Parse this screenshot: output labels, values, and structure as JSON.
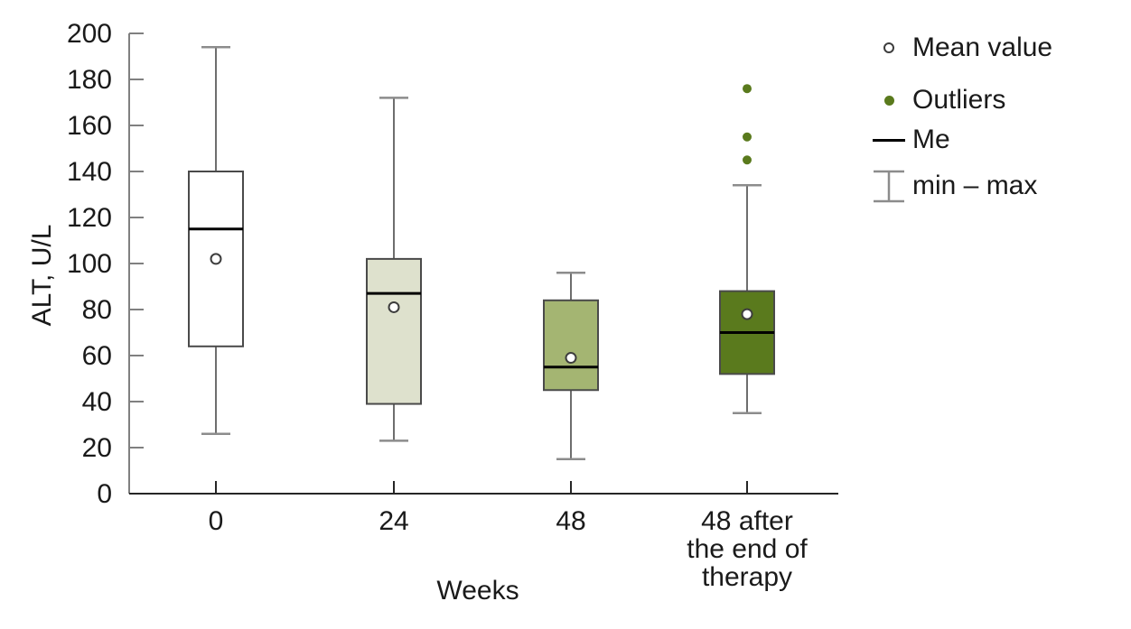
{
  "chart_data": {
    "type": "boxplot",
    "title": "",
    "ylabel": "ALT, U/L",
    "xlabel": "Weeks",
    "y_axis": {
      "min": 0,
      "max": 200,
      "tick_step": 20,
      "tick_labels": [
        "0",
        "20",
        "40",
        "60",
        "80",
        "100",
        "120",
        "140",
        "160",
        "180",
        "200"
      ]
    },
    "categories": [
      "0",
      "24",
      "48",
      "48 after the end of therapy"
    ],
    "boxes": [
      {
        "category_lines": [
          "0"
        ],
        "min": 26,
        "q1": 64,
        "median": 115,
        "mean": 102,
        "q3": 140,
        "max": 194,
        "outliers": [],
        "fill": "#ffffff"
      },
      {
        "category_lines": [
          "24"
        ],
        "min": 23,
        "q1": 39,
        "median": 87,
        "mean": 81,
        "q3": 102,
        "max": 172,
        "outliers": [],
        "fill": "#dee1cd"
      },
      {
        "category_lines": [
          "48"
        ],
        "min": 15,
        "q1": 45,
        "median": 55,
        "mean": 59,
        "q3": 84,
        "max": 96,
        "outliers": [],
        "fill": "#a4b572"
      },
      {
        "category_lines": [
          "48 after",
          "the end of",
          "therapy"
        ],
        "min": 35,
        "q1": 52,
        "median": 70,
        "mean": 78,
        "q3": 88,
        "max": 134,
        "outliers": [
          176,
          155,
          145
        ],
        "fill": "#5a7a1d"
      }
    ],
    "legend": [
      {
        "icon": "open-circle-icon",
        "label": "Mean value"
      },
      {
        "icon": "outlier-dot-icon",
        "label": "Outliers"
      },
      {
        "icon": "median-line-icon",
        "label": "Me"
      },
      {
        "icon": "min-max-whisker-icon",
        "label": "min – max"
      }
    ],
    "layout_hints": {
      "grid": false,
      "legend_position": "top-right"
    }
  },
  "colors": {
    "background": "#ffffff",
    "text": "#1a1a1a",
    "y_axis": "#808080",
    "x_axis": "#262626",
    "whisker": "#6e6e6e",
    "whisker_cap": "#8c8c8c",
    "box_border": "#4a4a4a",
    "median": "#000000",
    "mean_fill": "#ffffff",
    "mean_stroke": "#3d3d3d",
    "outlier": "#5a7a1d"
  }
}
